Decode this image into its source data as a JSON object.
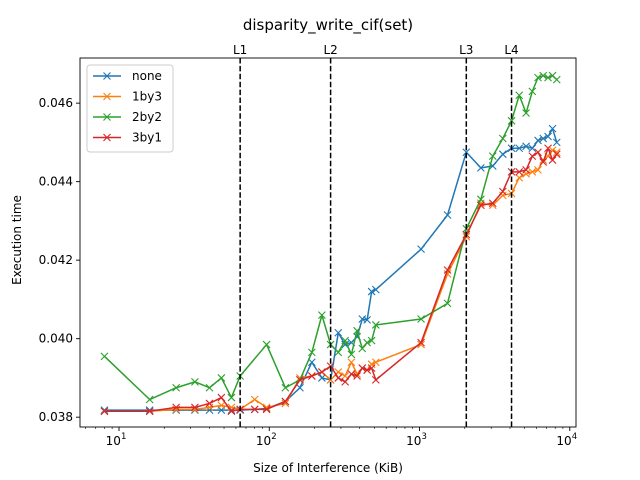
{
  "chart_data": {
    "type": "line",
    "title": "disparity_write_cif(set)",
    "xlabel": "Size of Interference (KiB)",
    "ylabel": "Execution time",
    "xscale": "log",
    "xlim": [
      5.5,
      11000
    ],
    "ylim": [
      0.03775,
      0.04715
    ],
    "x_ticks": [
      {
        "value": 10,
        "base": "10",
        "exp": "1"
      },
      {
        "value": 100,
        "base": "10",
        "exp": "2"
      },
      {
        "value": 1000,
        "base": "10",
        "exp": "3"
      },
      {
        "value": 10000,
        "base": "10",
        "exp": "4"
      }
    ],
    "y_ticks": [
      {
        "value": 0.038,
        "label": "0.038"
      },
      {
        "value": 0.04,
        "label": "0.040"
      },
      {
        "value": 0.042,
        "label": "0.042"
      },
      {
        "value": 0.044,
        "label": "0.044"
      },
      {
        "value": 0.046,
        "label": "0.046"
      }
    ],
    "grid": false,
    "legend_position": "top-left",
    "vlines": [
      {
        "label": "L1",
        "x": 64
      },
      {
        "label": "L2",
        "x": 256
      },
      {
        "label": "L3",
        "x": 2048
      },
      {
        "label": "L4",
        "x": 4096
      }
    ],
    "series": [
      {
        "name": "none",
        "color": "#1f77b4",
        "points": [
          [
            8,
            0.03818
          ],
          [
            16,
            0.03818
          ],
          [
            24,
            0.03818
          ],
          [
            32,
            0.03818
          ],
          [
            40,
            0.03818
          ],
          [
            48,
            0.03818
          ],
          [
            56,
            0.03818
          ],
          [
            64,
            0.03818
          ],
          [
            80,
            0.0382
          ],
          [
            96,
            0.03822
          ],
          [
            128,
            0.0384
          ],
          [
            160,
            0.03875
          ],
          [
            192,
            0.0394
          ],
          [
            224,
            0.039
          ],
          [
            256,
            0.03895
          ],
          [
            288,
            0.04015
          ],
          [
            320,
            0.03985
          ],
          [
            352,
            0.0399
          ],
          [
            384,
            0.04005
          ],
          [
            416,
            0.0405
          ],
          [
            448,
            0.04048
          ],
          [
            480,
            0.0412
          ],
          [
            512,
            0.04125
          ],
          [
            1024,
            0.04228
          ],
          [
            1536,
            0.04315
          ],
          [
            2048,
            0.04475
          ],
          [
            2560,
            0.04435
          ],
          [
            3072,
            0.0444
          ],
          [
            3584,
            0.0447
          ],
          [
            4096,
            0.04485
          ],
          [
            4608,
            0.04485
          ],
          [
            5120,
            0.0449
          ],
          [
            5632,
            0.04485
          ],
          [
            6144,
            0.04505
          ],
          [
            6656,
            0.0451
          ],
          [
            7168,
            0.04515
          ],
          [
            7680,
            0.04535
          ],
          [
            8192,
            0.045
          ]
        ]
      },
      {
        "name": "1by3",
        "color": "#ff7f0e",
        "points": [
          [
            8,
            0.03815
          ],
          [
            16,
            0.03815
          ],
          [
            24,
            0.0382
          ],
          [
            32,
            0.0382
          ],
          [
            40,
            0.03825
          ],
          [
            48,
            0.0383
          ],
          [
            56,
            0.03825
          ],
          [
            64,
            0.0382
          ],
          [
            80,
            0.03845
          ],
          [
            96,
            0.03825
          ],
          [
            128,
            0.03835
          ],
          [
            160,
            0.039
          ],
          [
            192,
            0.03905
          ],
          [
            224,
            0.03915
          ],
          [
            256,
            0.03895
          ],
          [
            288,
            0.03915
          ],
          [
            320,
            0.03905
          ],
          [
            352,
            0.0394
          ],
          [
            384,
            0.0391
          ],
          [
            416,
            0.03925
          ],
          [
            448,
            0.0392
          ],
          [
            480,
            0.03935
          ],
          [
            512,
            0.0394
          ],
          [
            1024,
            0.03985
          ],
          [
            1536,
            0.04165
          ],
          [
            2048,
            0.0426
          ],
          [
            2560,
            0.04345
          ],
          [
            3072,
            0.0434
          ],
          [
            3584,
            0.04365
          ],
          [
            4096,
            0.0437
          ],
          [
            4608,
            0.0441
          ],
          [
            5120,
            0.0442
          ],
          [
            5632,
            0.04425
          ],
          [
            6144,
            0.0443
          ],
          [
            6656,
            0.04455
          ],
          [
            7168,
            0.04465
          ],
          [
            7680,
            0.0448
          ],
          [
            8192,
            0.04475
          ]
        ]
      },
      {
        "name": "2by2",
        "color": "#2ca02c",
        "points": [
          [
            8,
            0.03955
          ],
          [
            16,
            0.03845
          ],
          [
            24,
            0.03875
          ],
          [
            32,
            0.0389
          ],
          [
            40,
            0.03875
          ],
          [
            48,
            0.039
          ],
          [
            56,
            0.0385
          ],
          [
            64,
            0.03905
          ],
          [
            96,
            0.03985
          ],
          [
            128,
            0.03875
          ],
          [
            160,
            0.03895
          ],
          [
            192,
            0.03965
          ],
          [
            224,
            0.0406
          ],
          [
            256,
            0.03985
          ],
          [
            288,
            0.03965
          ],
          [
            320,
            0.03995
          ],
          [
            352,
            0.0396
          ],
          [
            384,
            0.0402
          ],
          [
            416,
            0.03975
          ],
          [
            448,
            0.0399
          ],
          [
            480,
            0.03995
          ],
          [
            512,
            0.04035
          ],
          [
            1024,
            0.0405
          ],
          [
            1536,
            0.0409
          ],
          [
            2048,
            0.0428
          ],
          [
            2560,
            0.04355
          ],
          [
            3072,
            0.04465
          ],
          [
            3584,
            0.0451
          ],
          [
            4096,
            0.04555
          ],
          [
            4608,
            0.0462
          ],
          [
            5120,
            0.04575
          ],
          [
            5632,
            0.0463
          ],
          [
            6144,
            0.04665
          ],
          [
            6656,
            0.0467
          ],
          [
            7168,
            0.04665
          ],
          [
            7680,
            0.0467
          ],
          [
            8192,
            0.0466
          ]
        ]
      },
      {
        "name": "3by1",
        "color": "#d62728",
        "points": [
          [
            8,
            0.03815
          ],
          [
            16,
            0.03815
          ],
          [
            24,
            0.03825
          ],
          [
            32,
            0.03825
          ],
          [
            40,
            0.03835
          ],
          [
            48,
            0.0385
          ],
          [
            56,
            0.03815
          ],
          [
            64,
            0.0382
          ],
          [
            80,
            0.0382
          ],
          [
            96,
            0.0382
          ],
          [
            128,
            0.0384
          ],
          [
            160,
            0.03895
          ],
          [
            192,
            0.03905
          ],
          [
            224,
            0.03915
          ],
          [
            256,
            0.0393
          ],
          [
            288,
            0.039
          ],
          [
            320,
            0.0389
          ],
          [
            352,
            0.0391
          ],
          [
            384,
            0.03905
          ],
          [
            416,
            0.03925
          ],
          [
            448,
            0.0392
          ],
          [
            480,
            0.03925
          ],
          [
            512,
            0.03895
          ],
          [
            1024,
            0.0399
          ],
          [
            1536,
            0.04175
          ],
          [
            2048,
            0.04265
          ],
          [
            2560,
            0.0434
          ],
          [
            3072,
            0.04345
          ],
          [
            3584,
            0.04375
          ],
          [
            4096,
            0.04425
          ],
          [
            4608,
            0.04425
          ],
          [
            5120,
            0.0443
          ],
          [
            5632,
            0.04465
          ],
          [
            6144,
            0.04475
          ],
          [
            6656,
            0.0445
          ],
          [
            7168,
            0.04485
          ],
          [
            7680,
            0.04455
          ],
          [
            8192,
            0.0447
          ]
        ]
      }
    ]
  }
}
